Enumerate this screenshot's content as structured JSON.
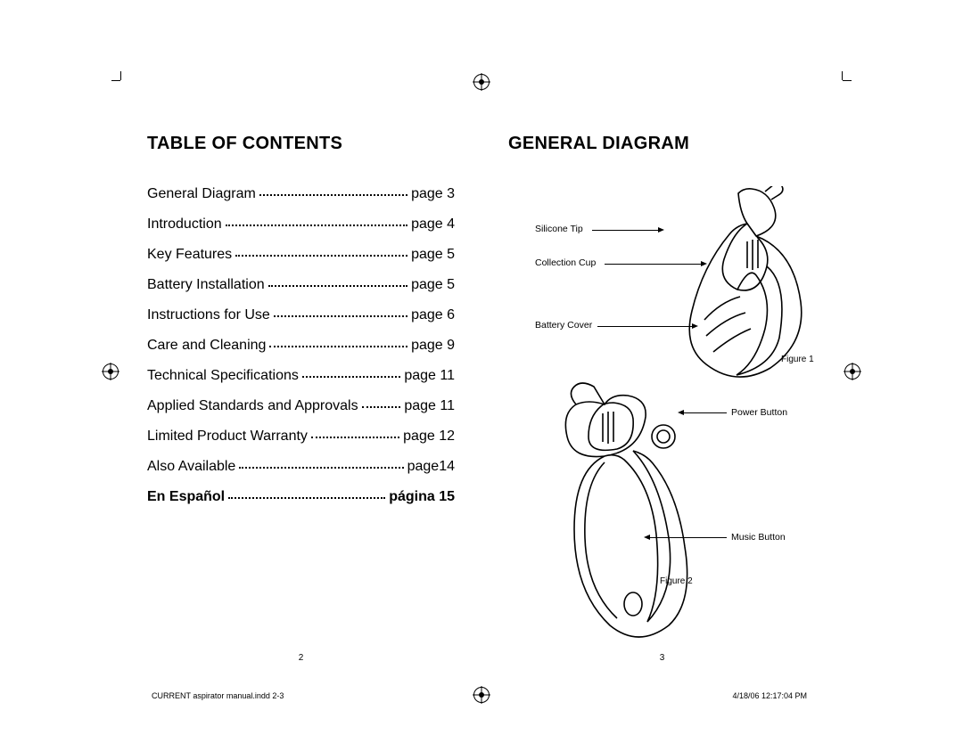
{
  "left_page": {
    "title": "TABLE OF CONTENTS",
    "toc": [
      {
        "label": "General Diagram",
        "page": "page 3"
      },
      {
        "label": "Introduction",
        "page": "page 4"
      },
      {
        "label": "Key Features",
        "page": "page 5"
      },
      {
        "label": "Battery Installation",
        "page": "page 5"
      },
      {
        "label": "Instructions for Use",
        "page": "page 6"
      },
      {
        "label": "Care and Cleaning",
        "page": "page 9"
      },
      {
        "label": "Technical Specifications",
        "page": "page 11"
      },
      {
        "label": "Applied Standards and Approvals",
        "page": "page 11"
      },
      {
        "label": "Limited Product Warranty",
        "page": "page 12"
      },
      {
        "label": "Also Available",
        "page": "page14"
      },
      {
        "label": "En Español",
        "page": "página 15",
        "bold": true
      }
    ],
    "page_num": "2"
  },
  "right_page": {
    "title": "GENERAL DIAGRAM",
    "callouts": {
      "silicone": "Silicone Tip",
      "cup": "Collection Cup",
      "battery": "Battery Cover",
      "power": "Power Button",
      "music": "Music Button"
    },
    "figure1": "Figure 1",
    "figure2": "Figure 2",
    "page_num": "3"
  },
  "footer": {
    "left": "CURRENT aspirator manual.indd   2-3",
    "right": "4/18/06   12:17:04 PM"
  },
  "style": {
    "title_fontsize": 20,
    "toc_fontsize": 16,
    "callout_fontsize": 10.5,
    "footer_fontsize": 9,
    "text_color": "#000000",
    "background_color": "#ffffff"
  }
}
